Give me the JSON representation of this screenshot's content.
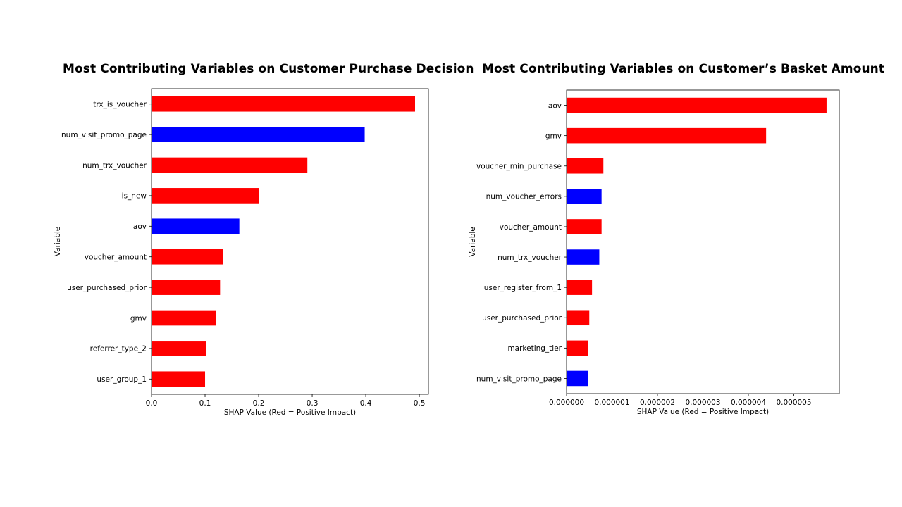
{
  "slide": {
    "left_title": "Most Contributing Variables on Customer Purchase Decision",
    "right_title": "Most Contributing Variables on Customer’s Basket Amount"
  },
  "colors": {
    "positive": "#ff0000",
    "negative": "#0000ff"
  },
  "chart_data": [
    {
      "type": "bar",
      "orientation": "horizontal",
      "title": "Most Contributing Variables on Customer Purchase Decision",
      "xlabel": "SHAP Value (Red = Positive Impact)",
      "ylabel": "Variable",
      "xlim": [
        0,
        0.517
      ],
      "xticks": [
        0.0,
        0.1,
        0.2,
        0.3,
        0.4,
        0.5
      ],
      "xtick_labels": [
        "0.0",
        "0.1",
        "0.2",
        "0.3",
        "0.4",
        "0.5"
      ],
      "grid": false,
      "categories": [
        "trx_is_voucher",
        "num_visit_promo_page",
        "num_trx_voucher",
        "is_new",
        "aov",
        "voucher_amount",
        "user_purchased_prior",
        "gmv",
        "referrer_type_2",
        "user_group_1"
      ],
      "values": [
        0.492,
        0.398,
        0.291,
        0.201,
        0.164,
        0.134,
        0.128,
        0.121,
        0.102,
        0.1
      ],
      "impact": [
        "positive",
        "negative",
        "positive",
        "positive",
        "negative",
        "positive",
        "positive",
        "positive",
        "positive",
        "positive"
      ]
    },
    {
      "type": "bar",
      "orientation": "horizontal",
      "title": "Most Contributing Variables on Customer’s Basket Amount",
      "xlabel": "SHAP Value (Red = Positive Impact)",
      "ylabel": "Variable",
      "xlim": [
        0,
        6e-06
      ],
      "xticks": [
        0,
        1e-06,
        2e-06,
        3e-06,
        4e-06,
        5e-06
      ],
      "xtick_labels": [
        "0.000000",
        "0.000001",
        "0.000002",
        "0.000003",
        "0.000004",
        "0.000005"
      ],
      "grid": false,
      "categories": [
        "aov",
        "gmv",
        "voucher_min_purchase",
        "num_voucher_errors",
        "voucher_amount",
        "num_trx_voucher",
        "user_register_from_1",
        "user_purchased_prior",
        "marketing_tier",
        "num_visit_promo_page"
      ],
      "values": [
        5.72e-06,
        4.39e-06,
        8.1e-07,
        7.7e-07,
        7.7e-07,
        7.2e-07,
        5.6e-07,
        5e-07,
        4.8e-07,
        4.8e-07
      ],
      "impact": [
        "positive",
        "positive",
        "positive",
        "negative",
        "positive",
        "negative",
        "positive",
        "positive",
        "positive",
        "negative"
      ]
    }
  ]
}
